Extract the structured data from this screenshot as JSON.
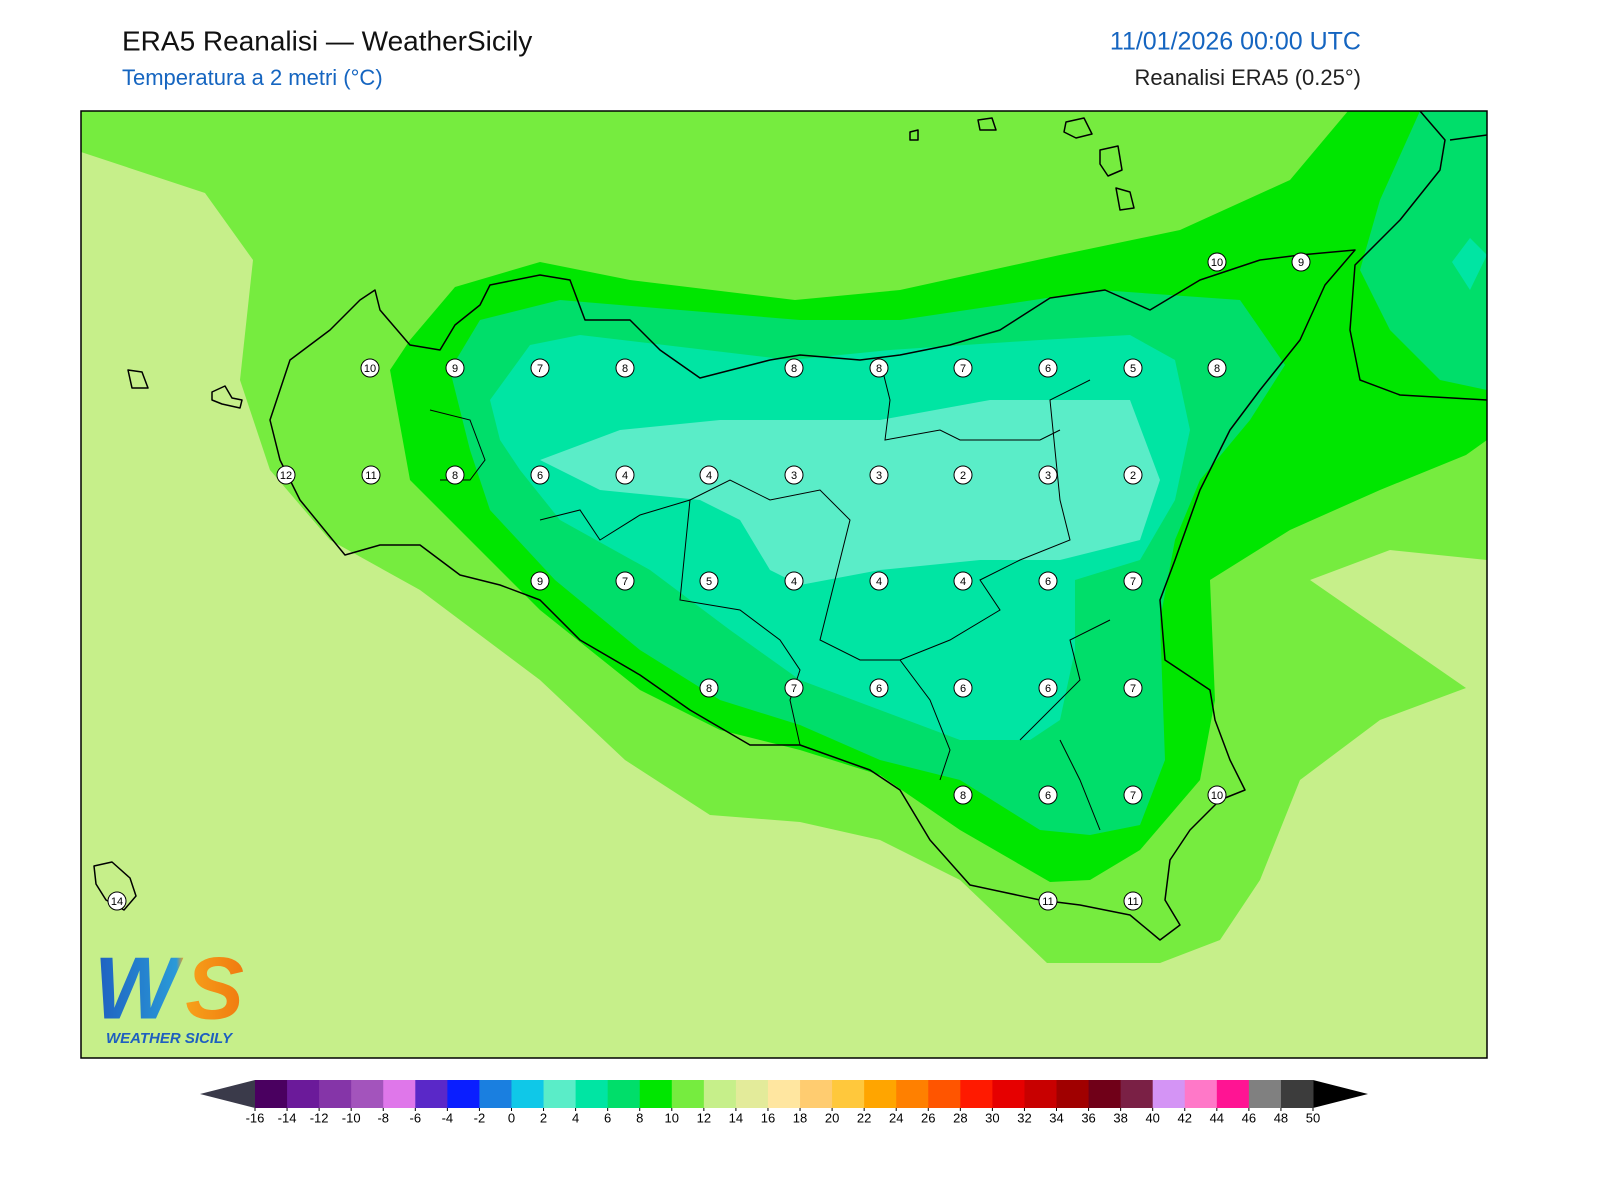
{
  "header": {
    "title": "ERA5 Reanalisi — WeatherSicily",
    "subtitle": "Temperatura a 2 metri (°C)",
    "datetime": "11/01/2026 00:00 UTC",
    "source": "Reanalisi ERA5 (0.25°)"
  },
  "stations": [
    10,
    9,
    10,
    9,
    7,
    8,
    8,
    8,
    7,
    6,
    5,
    8,
    12,
    11,
    8,
    6,
    4,
    4,
    3,
    3,
    2,
    3,
    2,
    9,
    7,
    5,
    4,
    4,
    4,
    6,
    7,
    8,
    7,
    6,
    6,
    6,
    7,
    8,
    6,
    7,
    10,
    14,
    11,
    11
  ],
  "colorbar": {
    "ticks": [
      -16,
      -14,
      -12,
      -10,
      -8,
      -6,
      -4,
      -2,
      0,
      2,
      4,
      6,
      8,
      10,
      12,
      14,
      16,
      18,
      20,
      22,
      24,
      26,
      28,
      30,
      32,
      34,
      36,
      38,
      40,
      42,
      44,
      46,
      48,
      50
    ],
    "colors": [
      "#4a0060",
      "#6b1a9a",
      "#8535a8",
      "#a354bc",
      "#df77ea",
      "#5a28c8",
      "#0a1eff",
      "#1a7fe0",
      "#0fc8e8",
      "#5aedc8",
      "#00e5a3",
      "#00de6a",
      "#00e600",
      "#76ec3f",
      "#c6ef8a",
      "#e3eb9a",
      "#ffe6a0",
      "#ffcc70",
      "#ffc83c",
      "#ffa500",
      "#ff8000",
      "#ff5500",
      "#ff1a00",
      "#e60000",
      "#c80000",
      "#a00000",
      "#700018",
      "#7a2045",
      "#d494f5",
      "#ff78c8",
      "#ff1493",
      "#808080",
      "#3c3c3c"
    ],
    "under": "#3a3a4a",
    "over": "#000000"
  },
  "logo": {
    "mark": "WS",
    "name": "WEATHER SICILY"
  }
}
